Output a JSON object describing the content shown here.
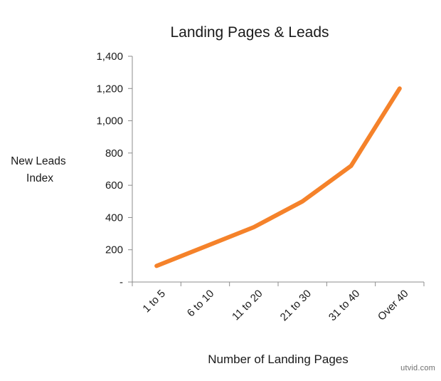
{
  "chart_data": {
    "type": "line",
    "title": "Landing Pages & Leads",
    "xlabel": "Number of Landing Pages",
    "ylabel_lines": [
      "New Leads",
      "Index"
    ],
    "categories": [
      "1 to 5",
      "6 to 10",
      "11 to 20",
      "21 to 30",
      "31 to 40",
      "Over 40"
    ],
    "series": [
      {
        "values": [
          100,
          220,
          340,
          500,
          720,
          1200
        ]
      }
    ],
    "ylim": [
      0,
      1400
    ],
    "yticks": [
      {
        "value": 0,
        "label": "-"
      },
      {
        "value": 200,
        "label": "200"
      },
      {
        "value": 400,
        "label": "400"
      },
      {
        "value": 600,
        "label": "600"
      },
      {
        "value": 800,
        "label": "800"
      },
      {
        "value": 1000,
        "label": "1,000"
      },
      {
        "value": 1200,
        "label": "1,200"
      },
      {
        "value": 1400,
        "label": "1,400"
      }
    ],
    "grid": false,
    "legend": "none",
    "colors": {
      "line": "#f5822a",
      "axis": "#8c8c8c",
      "text": "#1a1a1a"
    }
  },
  "watermark": "utvid.com"
}
